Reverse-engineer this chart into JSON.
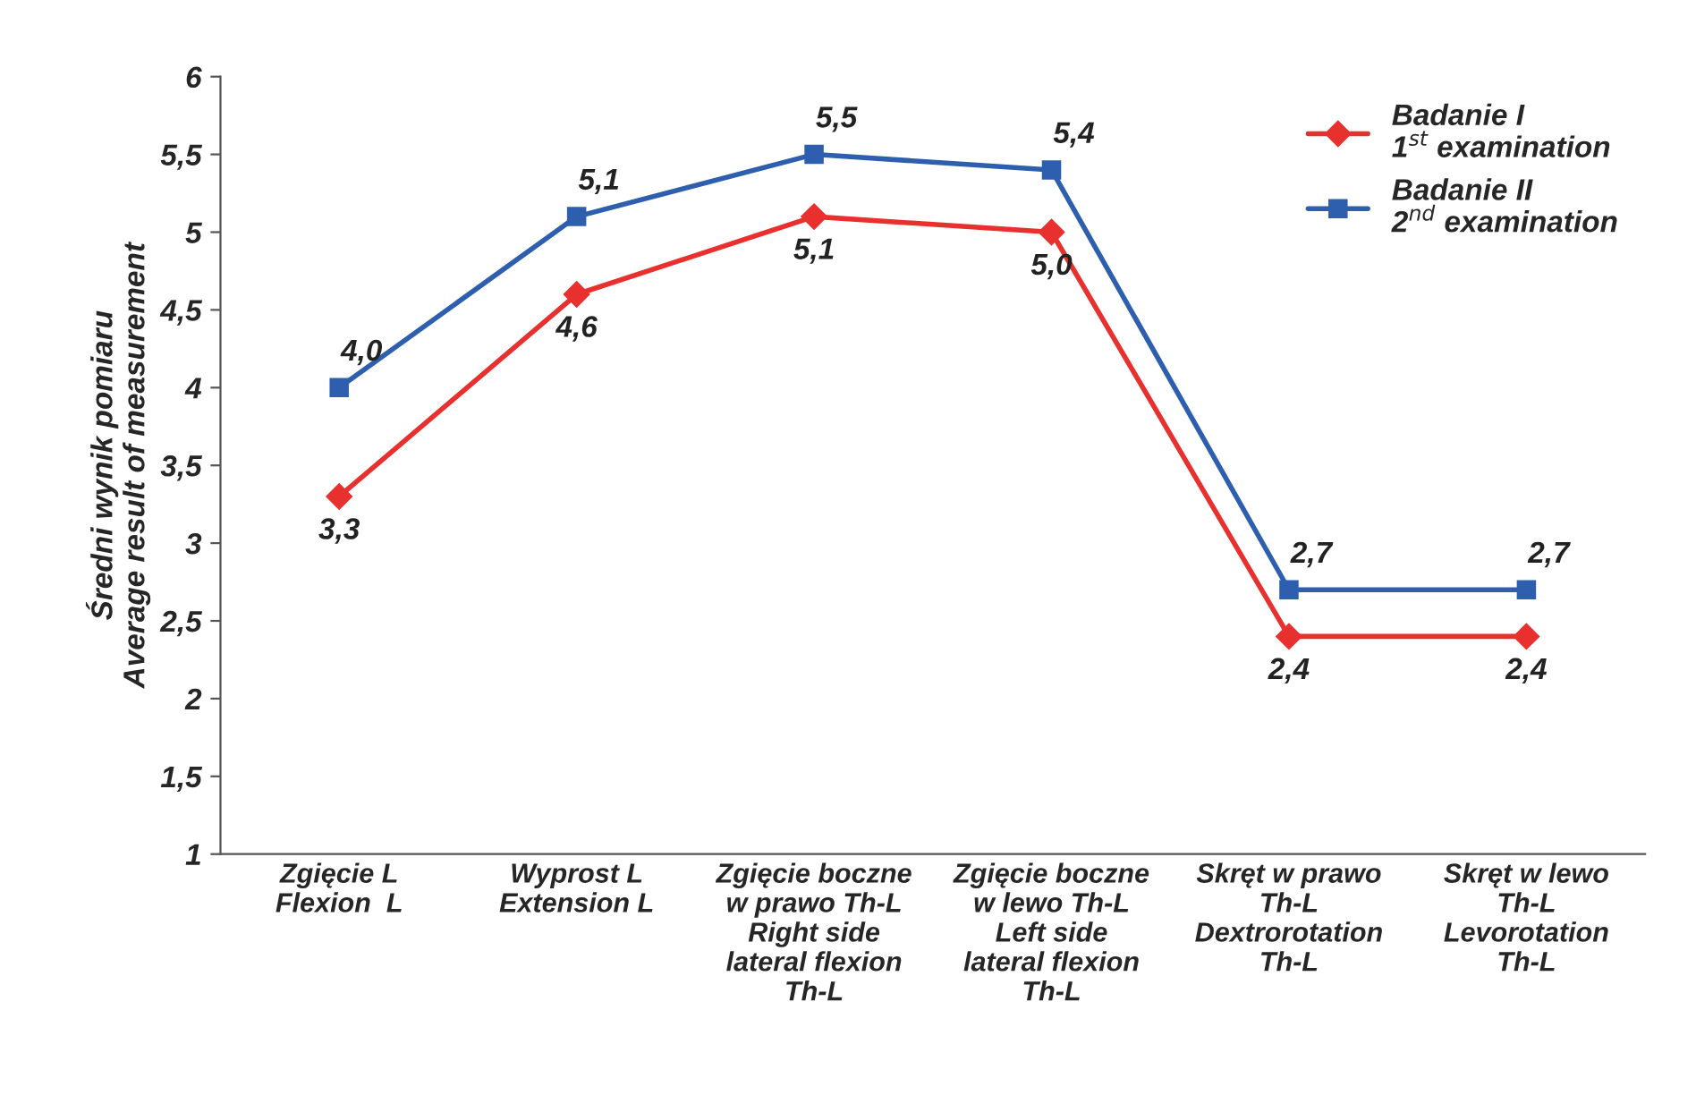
{
  "chart_data": {
    "type": "line",
    "ylabel": "Średni wynik pomiaru\nAverage result of measurement",
    "categories": [
      "Zgięcie L\nFlexion  L",
      "Wyprost L\nExtension L",
      "Zgięcie boczne\nw prawo Th-L\nRight side\nlateral flexion\nTh-L",
      "Zgięcie boczne\nw lewo Th-L\nLeft side\nlateral flexion\nTh-L",
      "Skręt w prawo\nTh-L\nDextrorotation\nTh-L",
      "Skręt w lewo\nTh-L\nLevorotation\nTh-L"
    ],
    "series": [
      {
        "name": "Badanie I\n1$^{st}$ examination",
        "color": "#e8312f",
        "marker": "diamond",
        "values": [
          3.3,
          4.6,
          5.1,
          5.0,
          2.4,
          2.4
        ],
        "value_labels": [
          "3,3",
          "4,6",
          "5,1",
          "5,0",
          "2,4",
          "2,4"
        ]
      },
      {
        "name": "Badanie II\n2$^{nd}$ examination",
        "color": "#2e5fae",
        "marker": "square",
        "values": [
          4.0,
          5.1,
          5.5,
          5.4,
          2.7,
          2.7
        ],
        "value_labels": [
          "4,0",
          "5,1",
          "5,5",
          "5,4",
          "2,7",
          "2,7"
        ]
      }
    ],
    "ylim": [
      1,
      6
    ],
    "yticks": [
      1,
      {
        "value": 1.5,
        "label": "1,5"
      },
      2,
      {
        "value": 2.5,
        "label": "2,5"
      },
      3,
      {
        "value": 3.5,
        "label": "3,5"
      },
      4,
      {
        "value": 4.5,
        "label": "4,5"
      },
      5,
      {
        "value": 5.5,
        "label": "5,5"
      },
      6
    ],
    "grid": false,
    "legend": "top right",
    "line_style": "solid"
  }
}
